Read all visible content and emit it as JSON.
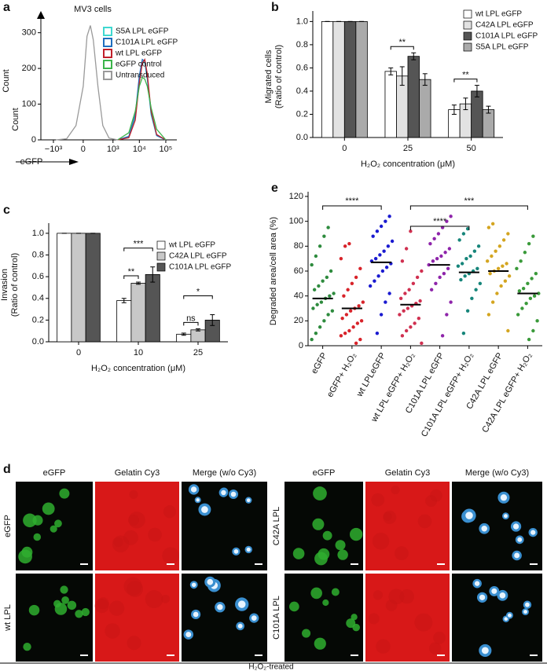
{
  "chart_data": [
    {
      "panel": "a",
      "type": "line",
      "title": "MV3 cells",
      "xlabel": "eGFP",
      "ylabel": "Count",
      "xscale": "symlog",
      "xlim": [
        -3000,
        262000
      ],
      "ylim": [
        0,
        330
      ],
      "xticks": [
        {
          "value": -1000,
          "label": "−10³"
        },
        0,
        {
          "value": 1000,
          "label": "10³"
        },
        {
          "value": 10000,
          "label": "10⁴"
        },
        {
          "value": 100000,
          "label": "10⁵"
        }
      ],
      "yticks": [
        0,
        100,
        200,
        300
      ],
      "series": [
        {
          "name": "S5A LPL eGFP",
          "color": "#3fd8d0",
          "x": [
            1500,
            4000,
            7000,
            10000,
            13000,
            16000,
            20000,
            28000,
            45000,
            100000
          ],
          "values": [
            0,
            8,
            60,
            170,
            220,
            215,
            170,
            70,
            12,
            0
          ]
        },
        {
          "name": "C101A LPL eGFP",
          "color": "#1f6fbf",
          "x": [
            1500,
            4000,
            7000,
            10000,
            13000,
            16000,
            20000,
            28000,
            45000,
            100000
          ],
          "values": [
            0,
            10,
            70,
            180,
            225,
            220,
            175,
            75,
            12,
            0
          ]
        },
        {
          "name": "wt LPL eGFP",
          "color": "#c0202a",
          "x": [
            1500,
            4000,
            7000,
            10000,
            13000,
            16000,
            20000,
            28000,
            45000,
            100000
          ],
          "values": [
            0,
            6,
            55,
            160,
            215,
            225,
            185,
            80,
            15,
            0
          ]
        },
        {
          "name": "eGFP control",
          "color": "#3cb44b",
          "x": [
            1500,
            4000,
            7000,
            10000,
            13000,
            16000,
            20000,
            28000,
            45000,
            100000
          ],
          "values": [
            0,
            20,
            80,
            150,
            175,
            170,
            150,
            90,
            30,
            0
          ]
        },
        {
          "name": "Untransduced",
          "color": "#9a9a9a",
          "x": [
            -800,
            -300,
            -100,
            0,
            50,
            100,
            150,
            250,
            400,
            700,
            1500
          ],
          "values": [
            0,
            3,
            40,
            150,
            290,
            320,
            280,
            150,
            40,
            5,
            0
          ]
        }
      ]
    },
    {
      "panel": "b",
      "type": "bar",
      "xlabel": "H₂O₂ concentration (μM)",
      "ylabel": [
        "Migrated cells",
        "(Ratio of control)"
      ],
      "categories": [
        "0",
        "25",
        "50"
      ],
      "ylim": [
        0,
        1.05
      ],
      "yticks": [
        {
          "value": 0,
          "label": "0.0"
        },
        0.2,
        0.4,
        0.6,
        0.8,
        {
          "value": 1,
          "label": "1.0"
        }
      ],
      "series": [
        {
          "name": "wt LPL eGFP",
          "color": "#ffffff",
          "values": [
            1,
            0.57,
            0.24
          ],
          "errors": [
            0,
            0.03,
            0.04
          ]
        },
        {
          "name": "C42A LPL eGFP",
          "color": "#e2e2e2",
          "values": [
            1,
            0.53,
            0.29
          ],
          "errors": [
            0,
            0.08,
            0.05
          ]
        },
        {
          "name": "C101A LPL eGFP",
          "color": "#555555",
          "values": [
            1,
            0.7,
            0.4
          ],
          "errors": [
            0,
            0.03,
            0.05
          ]
        },
        {
          "name": "S5A LPL eGFP",
          "color": "#aaaaaa",
          "values": [
            1,
            0.5,
            0.24
          ],
          "errors": [
            0,
            0.05,
            0.03
          ]
        }
      ],
      "annotations": [
        "**",
        "**"
      ]
    },
    {
      "panel": "c",
      "type": "bar",
      "xlabel": "H₂O₂ concentration (μM)",
      "ylabel": [
        "Invasion",
        "(Ratio of control)"
      ],
      "categories": [
        "0",
        "10",
        "25"
      ],
      "ylim": [
        0,
        1.05
      ],
      "yticks": [
        {
          "value": 0,
          "label": "0.0"
        },
        0.2,
        0.4,
        0.6,
        0.8,
        {
          "value": 1,
          "label": "1.0"
        }
      ],
      "series": [
        {
          "name": "wt LPL eGFP",
          "color": "#ffffff",
          "values": [
            1,
            0.38,
            0.07
          ],
          "errors": [
            0,
            0.02,
            0.01
          ]
        },
        {
          "name": "C42A LPL eGFP",
          "color": "#c8c8c8",
          "values": [
            1,
            0.54,
            0.11
          ],
          "errors": [
            0,
            0.01,
            0.01
          ]
        },
        {
          "name": "C101A LPL eGFP",
          "color": "#555555",
          "values": [
            1,
            0.62,
            0.2
          ],
          "errors": [
            0,
            0.07,
            0.05
          ]
        }
      ],
      "annotations": [
        "***",
        "**",
        "*",
        "ns"
      ]
    },
    {
      "panel": "e",
      "type": "strip",
      "ylabel": "Degraded area/cell area (%)",
      "ylim": [
        0,
        120
      ],
      "yticks": [
        0,
        20,
        40,
        60,
        80,
        100,
        120
      ],
      "categories": [
        "eGFP",
        "eGFP+ H₂O₂",
        "wt LPLeGFP",
        "wt LPL eGFP+ H₂O₂",
        "C101A LPL eGFP",
        "C101A LPL eGFP+ H₂O₂",
        "C42A LPL eGFP",
        "C42A LPL eGFP+ H₂O₂"
      ],
      "colors": [
        "#2e8b3e",
        "#d8232a",
        "#1a1ad0",
        "#d03050",
        "#8e24aa",
        "#16857a",
        "#d4a520",
        "#3a9a3a"
      ],
      "means": [
        38,
        30,
        67,
        33,
        65,
        59,
        60,
        42
      ],
      "points": [
        [
          5,
          10,
          15,
          20,
          25,
          28,
          30,
          33,
          35,
          38,
          40,
          42,
          45,
          48,
          52,
          55,
          60,
          65,
          72,
          80,
          88,
          95
        ],
        [
          2,
          5,
          8,
          10,
          12,
          15,
          18,
          20,
          22,
          25,
          28,
          30,
          32,
          35,
          40,
          45,
          50,
          55,
          62,
          70,
          80,
          82
        ],
        [
          10,
          25,
          35,
          42,
          48,
          52,
          56,
          60,
          63,
          66,
          68,
          70,
          73,
          76,
          80,
          84,
          88,
          92,
          96,
          100,
          104
        ],
        [
          2,
          8,
          12,
          15,
          18,
          22,
          25,
          28,
          30,
          32,
          34,
          36,
          38,
          42,
          45,
          50,
          55,
          60,
          68,
          78,
          92
        ],
        [
          8,
          25,
          35,
          45,
          50,
          55,
          58,
          62,
          65,
          68,
          70,
          72,
          75,
          78,
          82,
          86,
          90,
          95,
          100,
          104
        ],
        [
          10,
          28,
          38,
          45,
          50,
          53,
          56,
          58,
          60,
          62,
          64,
          66,
          70,
          72,
          76,
          80,
          85,
          90,
          94
        ],
        [
          12,
          25,
          35,
          42,
          48,
          52,
          56,
          58,
          60,
          62,
          64,
          66,
          68,
          72,
          76,
          80,
          85,
          90,
          95,
          98
        ],
        [
          5,
          12,
          20,
          25,
          30,
          34,
          38,
          40,
          42,
          44,
          46,
          50,
          54,
          58,
          62,
          68,
          75,
          82,
          88
        ]
      ],
      "annotations": [
        "****",
        "****",
        "***"
      ]
    }
  ],
  "panel_d": {
    "panel": "d",
    "columns": [
      "eGFP",
      "Gelatin Cy3",
      "Merge (w/o Cy3)"
    ],
    "rows_left": [
      "eGFP",
      "wt LPL"
    ],
    "rows_right": [
      "C42A LPL",
      "C101A LPL"
    ],
    "footer": "H₂O₂-treated"
  }
}
